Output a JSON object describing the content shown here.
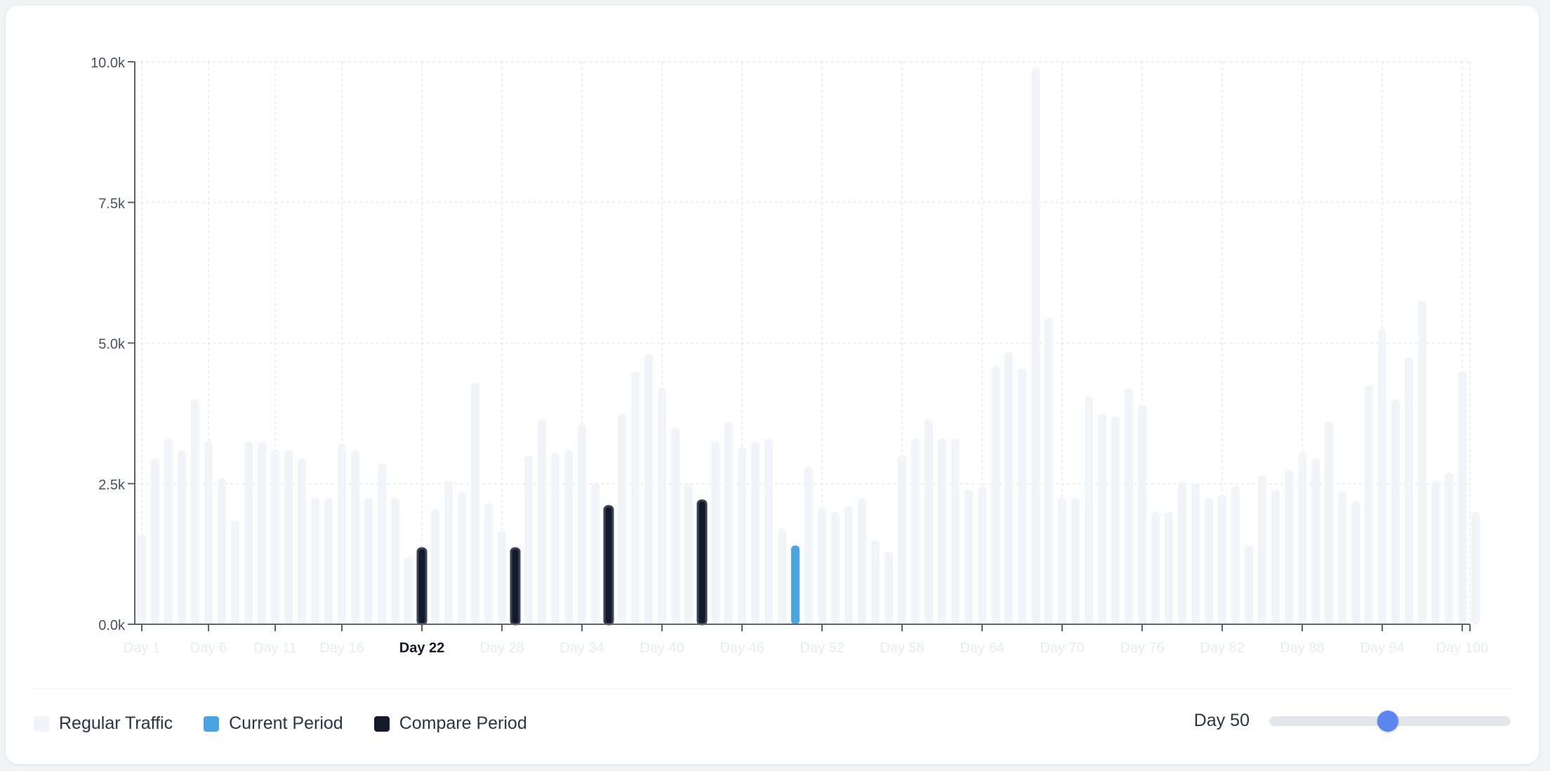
{
  "chart_data": {
    "type": "bar",
    "title": "",
    "xlabel": "",
    "ylabel": "",
    "ylim": [
      0,
      10000
    ],
    "yticks": [
      0,
      2500,
      5000,
      7500,
      10000
    ],
    "ytick_labels": [
      "0.0k",
      "2.5k",
      "5.0k",
      "7.5k",
      "10.0k"
    ],
    "x_label_days": [
      1,
      6,
      11,
      16,
      22,
      28,
      34,
      40,
      46,
      52,
      58,
      64,
      70,
      76,
      82,
      88,
      94,
      100
    ],
    "highlighted_tick": "Day 22",
    "grid": true,
    "categories": [
      "Day 1",
      "Day 2",
      "Day 3",
      "Day 4",
      "Day 5",
      "Day 6",
      "Day 7",
      "Day 8",
      "Day 9",
      "Day 10",
      "Day 11",
      "Day 12",
      "Day 13",
      "Day 14",
      "Day 15",
      "Day 16",
      "Day 17",
      "Day 18",
      "Day 19",
      "Day 20",
      "Day 21",
      "Day 22",
      "Day 23",
      "Day 24",
      "Day 25",
      "Day 26",
      "Day 27",
      "Day 28",
      "Day 29",
      "Day 30",
      "Day 31",
      "Day 32",
      "Day 33",
      "Day 34",
      "Day 35",
      "Day 36",
      "Day 37",
      "Day 38",
      "Day 39",
      "Day 40",
      "Day 41",
      "Day 42",
      "Day 43",
      "Day 44",
      "Day 45",
      "Day 46",
      "Day 47",
      "Day 48",
      "Day 49",
      "Day 50",
      "Day 51",
      "Day 52",
      "Day 53",
      "Day 54",
      "Day 55",
      "Day 56",
      "Day 57",
      "Day 58",
      "Day 59",
      "Day 60",
      "Day 61",
      "Day 62",
      "Day 63",
      "Day 64",
      "Day 65",
      "Day 66",
      "Day 67",
      "Day 68",
      "Day 69",
      "Day 70",
      "Day 71",
      "Day 72",
      "Day 73",
      "Day 74",
      "Day 75",
      "Day 76",
      "Day 77",
      "Day 78",
      "Day 79",
      "Day 80",
      "Day 81",
      "Day 82",
      "Day 83",
      "Day 84",
      "Day 85",
      "Day 86",
      "Day 87",
      "Day 88",
      "Day 89",
      "Day 90",
      "Day 91",
      "Day 92",
      "Day 93",
      "Day 94",
      "Day 95",
      "Day 96",
      "Day 97",
      "Day 98",
      "Day 99",
      "Day 100",
      "Day 101"
    ],
    "values": [
      1600,
      2950,
      3300,
      3100,
      4000,
      3250,
      2600,
      1850,
      3250,
      3250,
      3100,
      3100,
      2950,
      2250,
      2250,
      3200,
      3100,
      2250,
      2850,
      2250,
      1200,
      1350,
      2050,
      2550,
      2350,
      4300,
      2150,
      1650,
      1350,
      3000,
      3650,
      3050,
      3100,
      3550,
      2500,
      2100,
      3750,
      4500,
      4800,
      4200,
      3500,
      2500,
      2200,
      3250,
      3600,
      3150,
      3250,
      3300,
      1700,
      1400,
      2800,
      2050,
      2000,
      2100,
      2250,
      1500,
      1300,
      3000,
      3300,
      3650,
      3300,
      3300,
      2400,
      2450,
      4600,
      4850,
      4550,
      9900,
      5450,
      2250,
      2250,
      4050,
      3750,
      3700,
      4200,
      3900,
      2000,
      2000,
      2550,
      2500,
      2250,
      2300,
      2450,
      1400,
      2650,
      2400,
      2750,
      3050,
      2950,
      3600,
      2350,
      2200,
      4250,
      5250,
      4000,
      4750,
      5750,
      2550,
      2700,
      4500,
      2000
    ],
    "series": [
      {
        "name": "Regular Traffic",
        "color": "#f1f4f9"
      },
      {
        "name": "Current Period",
        "color": "#4aa3e2",
        "days": [
          50
        ]
      },
      {
        "name": "Compare Period",
        "color": "#121a2c",
        "days": [
          22,
          29,
          36,
          43
        ]
      }
    ],
    "legend_position": "bottom-left"
  },
  "legend": {
    "items": [
      {
        "label": "Regular Traffic",
        "color": "#f1f4f9"
      },
      {
        "label": "Current Period",
        "color": "#4aa3e2"
      },
      {
        "label": "Compare Period",
        "color": "#121a2c"
      }
    ]
  },
  "slider": {
    "label": "Day 50",
    "value": 50,
    "min": 1,
    "max": 101,
    "thumb_color": "#5b86f0",
    "track_color": "#e3e6eb"
  }
}
